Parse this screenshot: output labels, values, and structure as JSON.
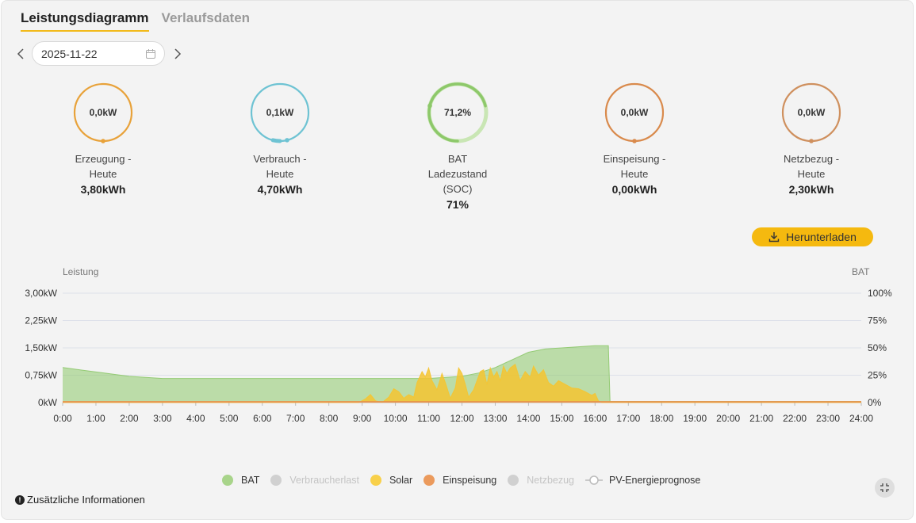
{
  "tabs": [
    "Leistungsdiagramm",
    "Verlaufsdaten"
  ],
  "date": {
    "value": "2025-11-22"
  },
  "gauges": [
    {
      "value_text": "0,0kW",
      "label": "Erzeugung -\nHeute",
      "total": "3,80kWh",
      "color": "#e8a23a",
      "color2": "#f0c04a",
      "fraction": 0.0
    },
    {
      "value_text": "0,1kW",
      "label": "Verbrauch -\nHeute",
      "total": "4,70kWh",
      "color": "#6ec3d3",
      "color2": "#8fd3de",
      "fraction": 0.04
    },
    {
      "value_text": "71,2%",
      "label": "BAT\nLadezustand\n(SOC)",
      "total": "71%",
      "color": "#8dc86a",
      "color2": "#c9e6b4",
      "fraction": 0.712
    },
    {
      "value_text": "0,0kW",
      "label": "Einspeisung -\nHeute",
      "total": "0,00kWh",
      "color": "#d98a4c",
      "color2": "#eaa86e",
      "fraction": 0.0
    },
    {
      "value_text": "0,0kW",
      "label": "Netzbezug -\nHeute",
      "total": "2,30kWh",
      "color": "#cf905e",
      "color2": "#e6b58e",
      "fraction": 0.0
    }
  ],
  "download_label": "Herunterladen",
  "extra_info": "Zusätzliche Informationen",
  "chart_data": {
    "type": "area",
    "left_axis_title": "Leistung",
    "right_axis_title": "BAT",
    "y_left_ticks": [
      "3,00kW",
      "2,25kW",
      "1,50kW",
      "0,75kW",
      "0kW"
    ],
    "y_right_ticks": [
      "100%",
      "75%",
      "50%",
      "25%",
      "0%"
    ],
    "x_ticks": [
      "0:00",
      "1:00",
      "2:00",
      "3:00",
      "4:00",
      "5:00",
      "6:00",
      "7:00",
      "8:00",
      "9:00",
      "10:00",
      "11:00",
      "12:00",
      "13:00",
      "14:00",
      "15:00",
      "16:00",
      "17:00",
      "18:00",
      "19:00",
      "20:00",
      "21:00",
      "22:00",
      "23:00",
      "24:00"
    ],
    "x_range": [
      0,
      24
    ],
    "y_left_range": [
      0,
      3
    ],
    "y_right_range": [
      0,
      100
    ],
    "series": [
      {
        "name": "BAT",
        "unit": "%",
        "axis": "right",
        "color": "#8dc86a",
        "points": [
          [
            0,
            32
          ],
          [
            0.5,
            30
          ],
          [
            1,
            28
          ],
          [
            1.5,
            26
          ],
          [
            2,
            24
          ],
          [
            2.5,
            23
          ],
          [
            3,
            22
          ],
          [
            6,
            22
          ],
          [
            9,
            22
          ],
          [
            11,
            22
          ],
          [
            12,
            24
          ],
          [
            12.5,
            27
          ],
          [
            13,
            32
          ],
          [
            13.5,
            39
          ],
          [
            14,
            46
          ],
          [
            14.5,
            49
          ],
          [
            15,
            50
          ],
          [
            15.5,
            51
          ],
          [
            16,
            52
          ],
          [
            16.4,
            52
          ],
          [
            16.45,
            1
          ],
          [
            24,
            1
          ]
        ]
      },
      {
        "name": "Solar",
        "unit": "kW",
        "axis": "left",
        "color": "#f5c431",
        "points": [
          [
            0,
            0
          ],
          [
            8.9,
            0
          ],
          [
            9.1,
            0.1
          ],
          [
            9.25,
            0.22
          ],
          [
            9.4,
            0.05
          ],
          [
            9.6,
            0
          ],
          [
            9.8,
            0.15
          ],
          [
            9.95,
            0.38
          ],
          [
            10.1,
            0.3
          ],
          [
            10.25,
            0.12
          ],
          [
            10.4,
            0.22
          ],
          [
            10.55,
            0.15
          ],
          [
            10.65,
            0.55
          ],
          [
            10.8,
            0.85
          ],
          [
            10.9,
            0.7
          ],
          [
            11,
            0.95
          ],
          [
            11.1,
            0.6
          ],
          [
            11.25,
            0.35
          ],
          [
            11.4,
            0.8
          ],
          [
            11.5,
            0.55
          ],
          [
            11.65,
            0.12
          ],
          [
            11.8,
            0.4
          ],
          [
            11.9,
            0.95
          ],
          [
            12,
            0.8
          ],
          [
            12.1,
            0.5
          ],
          [
            12.2,
            0.15
          ],
          [
            12.35,
            0.35
          ],
          [
            12.45,
            0.6
          ],
          [
            12.55,
            0.85
          ],
          [
            12.65,
            0.9
          ],
          [
            12.75,
            0.5
          ],
          [
            12.85,
            0.95
          ],
          [
            12.95,
            0.7
          ],
          [
            13.05,
            0.85
          ],
          [
            13.15,
            0.6
          ],
          [
            13.25,
            1.0
          ],
          [
            13.35,
            0.8
          ],
          [
            13.45,
            0.95
          ],
          [
            13.6,
            1.05
          ],
          [
            13.75,
            0.6
          ],
          [
            13.9,
            0.85
          ],
          [
            14.05,
            0.7
          ],
          [
            14.15,
            1.0
          ],
          [
            14.3,
            0.75
          ],
          [
            14.45,
            0.9
          ],
          [
            14.6,
            0.55
          ],
          [
            14.75,
            0.45
          ],
          [
            14.9,
            0.6
          ],
          [
            15.1,
            0.5
          ],
          [
            15.3,
            0.4
          ],
          [
            15.5,
            0.38
          ],
          [
            15.7,
            0.3
          ],
          [
            15.9,
            0.2
          ],
          [
            16.0,
            0.25
          ],
          [
            16.1,
            0.05
          ],
          [
            16.2,
            0
          ],
          [
            24,
            0
          ]
        ]
      },
      {
        "name": "Einspeisung",
        "unit": "kW",
        "axis": "left",
        "color": "#e8944a",
        "points": [
          [
            0,
            0.02
          ],
          [
            24,
            0.02
          ]
        ]
      }
    ],
    "legend": [
      {
        "name": "BAT",
        "color": "#a8d48a",
        "active": true,
        "kind": "dot"
      },
      {
        "name": "Verbraucherlast",
        "color": "#d0d0d0",
        "active": false,
        "kind": "dot"
      },
      {
        "name": "Solar",
        "color": "#f8d04a",
        "active": true,
        "kind": "dot"
      },
      {
        "name": "Einspeisung",
        "color": "#eb9a5c",
        "active": true,
        "kind": "dot"
      },
      {
        "name": "Netzbezug",
        "color": "#d0d0d0",
        "active": false,
        "kind": "dot"
      },
      {
        "name": "PV-Energieprognose",
        "color": "#bbbbbb",
        "active": true,
        "kind": "line"
      }
    ]
  }
}
